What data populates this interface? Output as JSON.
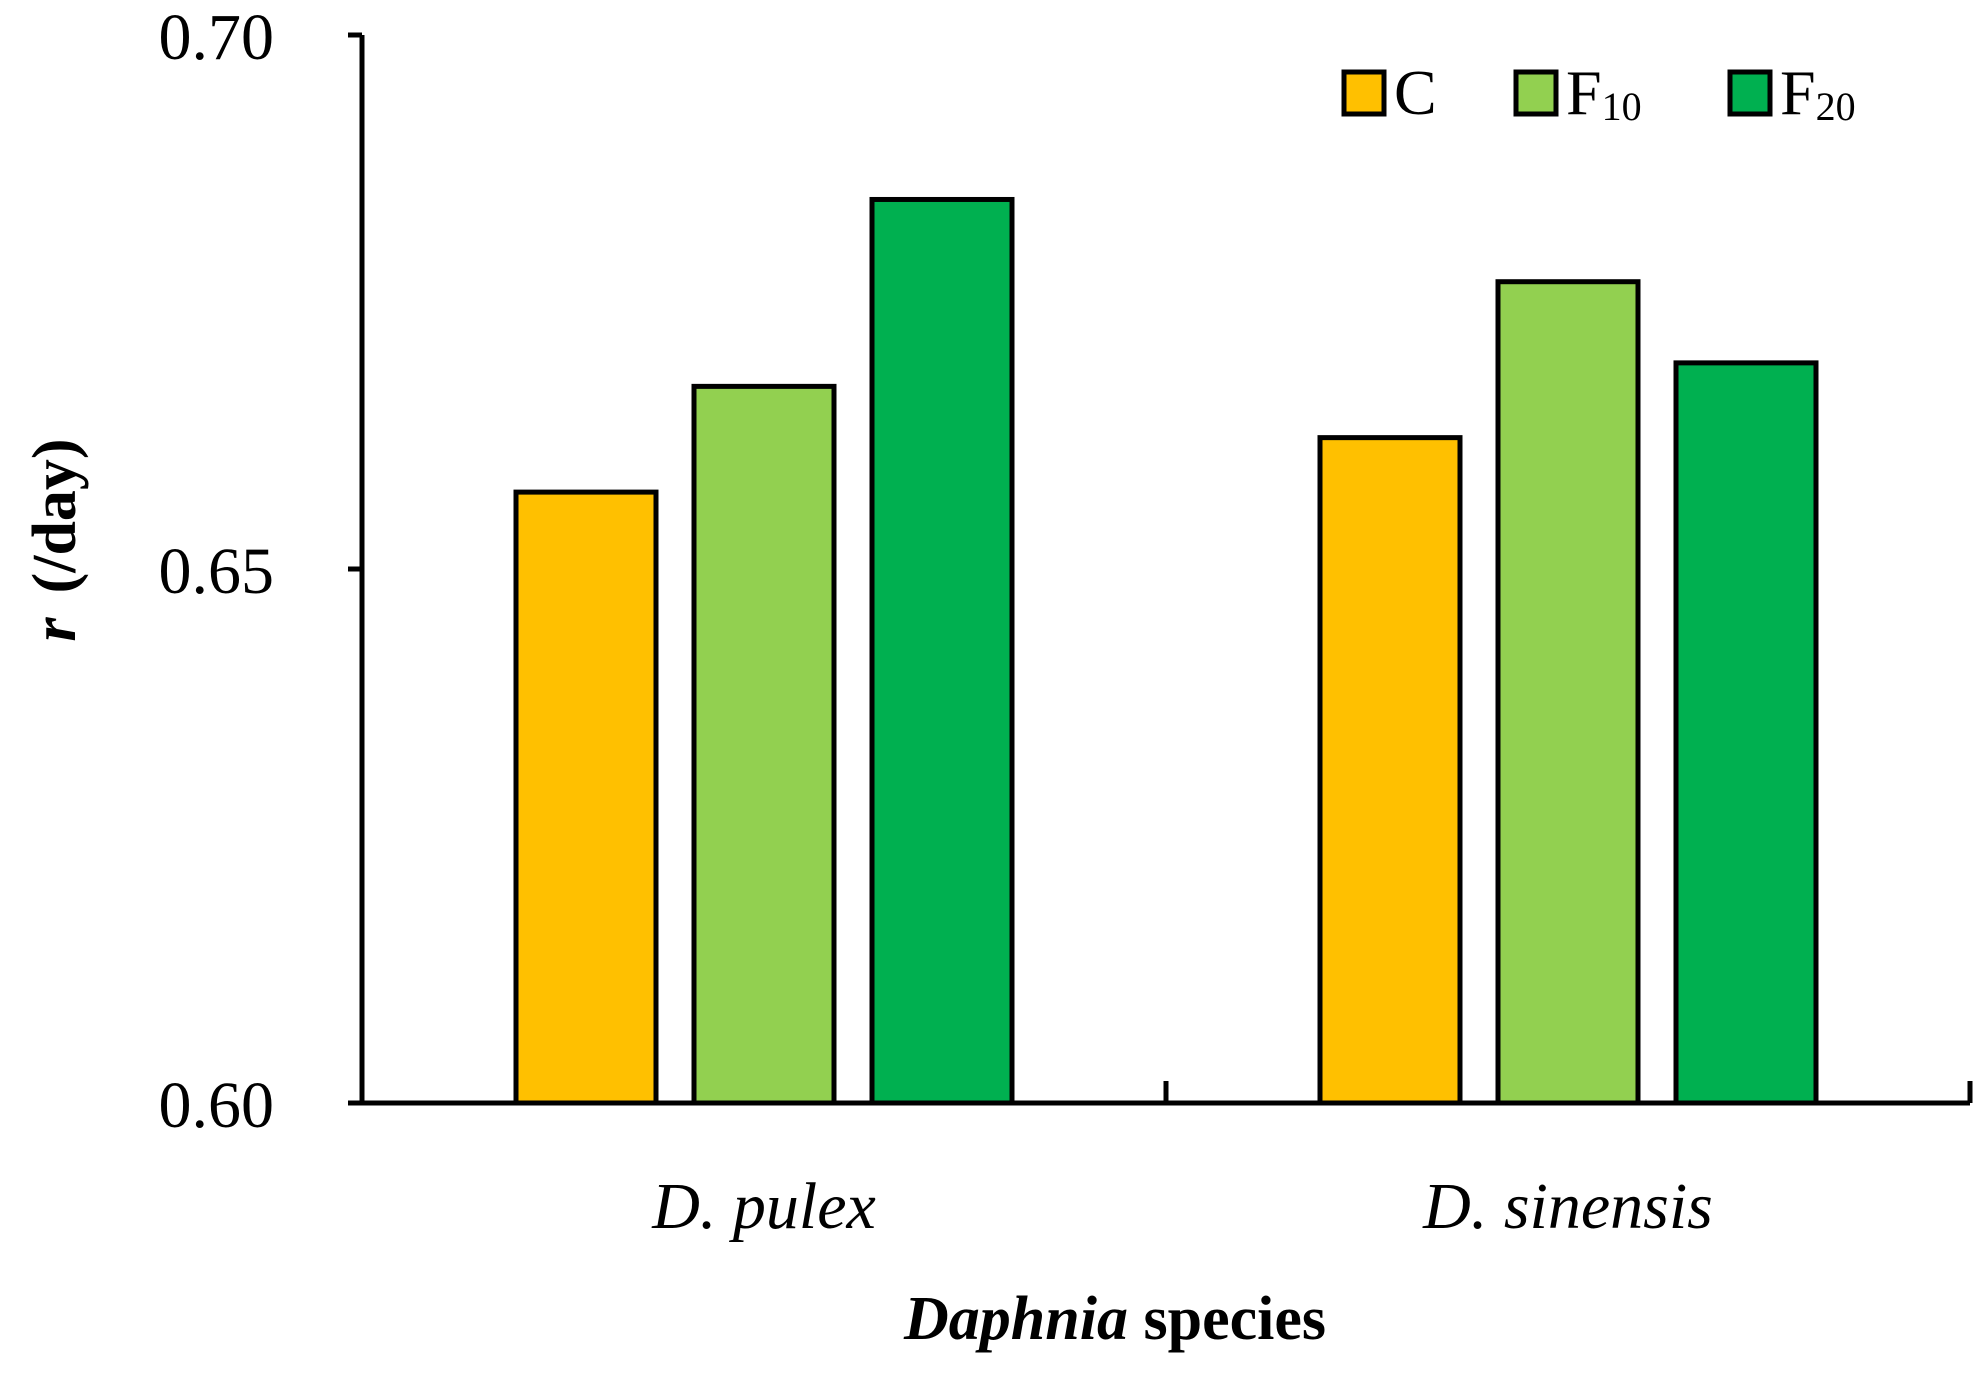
{
  "chart_data": {
    "type": "bar",
    "categories": [
      "D. pulex",
      "D. sinensis"
    ],
    "series": [
      {
        "name": "C",
        "name_base": "C",
        "name_sub": "",
        "color": "#FFC000",
        "values": [
          0.6572,
          0.6623
        ]
      },
      {
        "name": "F10",
        "name_base": "F",
        "name_sub": "10",
        "color": "#92D050",
        "values": [
          0.6671,
          0.6769
        ]
      },
      {
        "name": "F20",
        "name_base": "F",
        "name_sub": "20",
        "color": "#00B050",
        "values": [
          0.6846,
          0.6693
        ]
      }
    ],
    "ylim": [
      0.6,
      0.7
    ],
    "yticks": [
      "0.60",
      "0.65",
      "0.70"
    ],
    "ylabel_italic": "r",
    "ylabel_rest": "(/day)",
    "xlabel_italic": "Daphnia",
    "xlabel_rest": " species",
    "legend_position": "top-right",
    "grid": false
  }
}
